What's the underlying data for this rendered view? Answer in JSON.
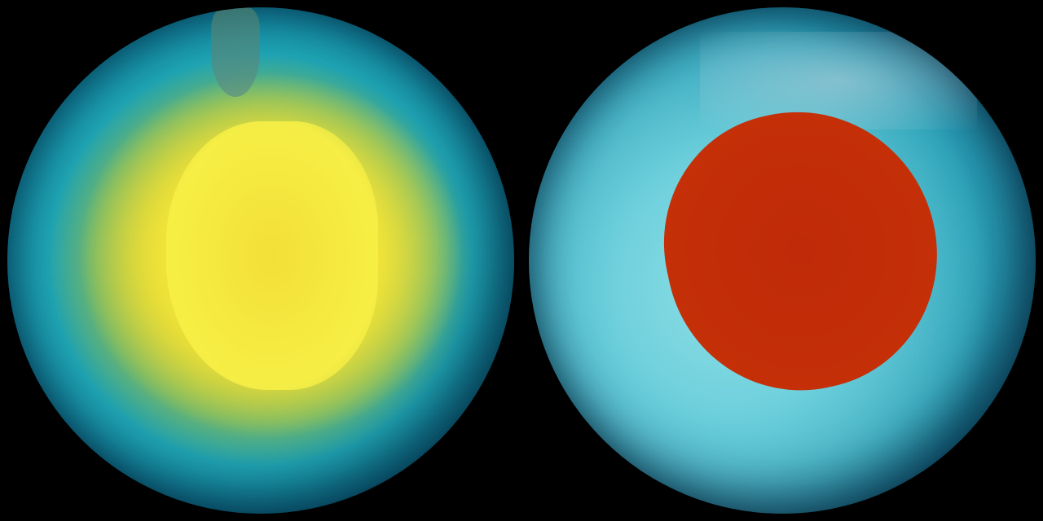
{
  "scene": {
    "background_color": "#000000",
    "left_globe": {
      "description_colors": {
        "center": "#f6ef3a",
        "ring": "#e6c72a",
        "ocean": "#1fa3b2"
      }
    },
    "right_globe": {
      "description_colors": {
        "hole_center": "#c02a08",
        "hole_edge": "#f7d020",
        "ocean": "#3fb7c8"
      }
    }
  }
}
